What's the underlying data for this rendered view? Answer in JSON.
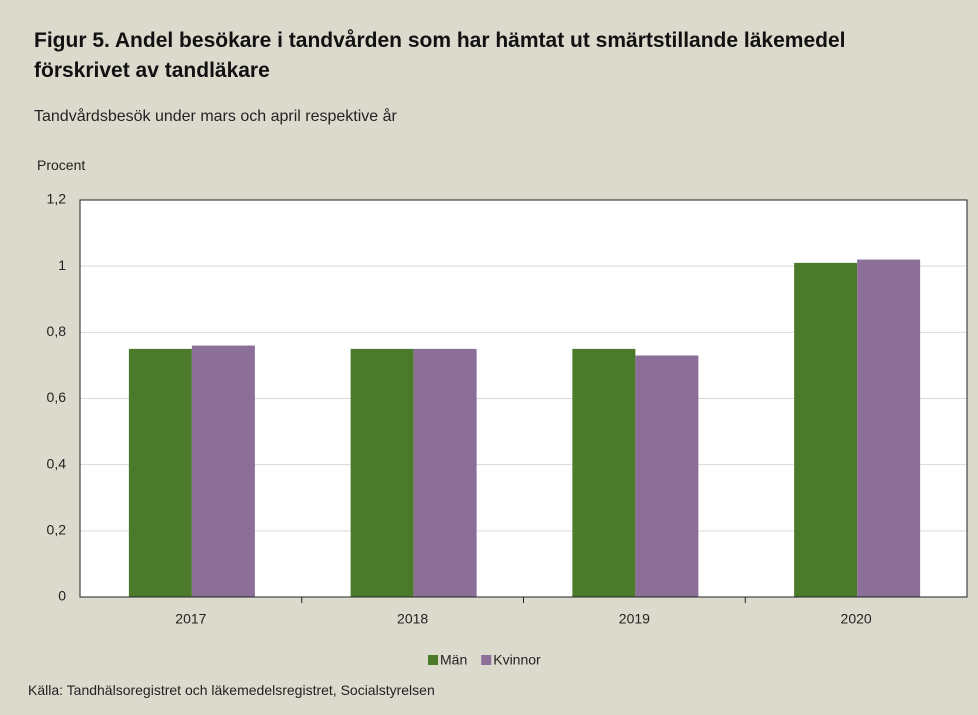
{
  "chart_data": {
    "type": "bar",
    "title": "Figur 5. Andel besökare i tandvården som har hämtat ut smärtstillande läkemedel förskrivet av tandläkare",
    "subtitle": "Tandvårdsbesök under mars och april respektive år",
    "y_label": "Procent",
    "source": "Källa: Tandhälsoregistret och läkemedelsregistret, Socialstyrelsen",
    "categories": [
      "2017",
      "2018",
      "2019",
      "2020"
    ],
    "series": [
      {
        "name": "Män",
        "color": "#4b7a2b",
        "values": [
          0.75,
          0.75,
          0.75,
          1.01
        ]
      },
      {
        "name": "Kvinnor",
        "color": "#8b6f98",
        "values": [
          0.76,
          0.75,
          0.73,
          1.02
        ]
      }
    ],
    "ylim": [
      0,
      1.2
    ],
    "yticks": [
      0,
      {
        "value": 0.2,
        "label": "0,2"
      },
      {
        "value": 0.4,
        "label": "0,4"
      },
      {
        "value": 0.6,
        "label": "0,6"
      },
      {
        "value": 0.8,
        "label": "0,8"
      },
      1,
      {
        "value": 1.2,
        "label": "1,2"
      }
    ],
    "grid": true,
    "legend": "bottom"
  }
}
